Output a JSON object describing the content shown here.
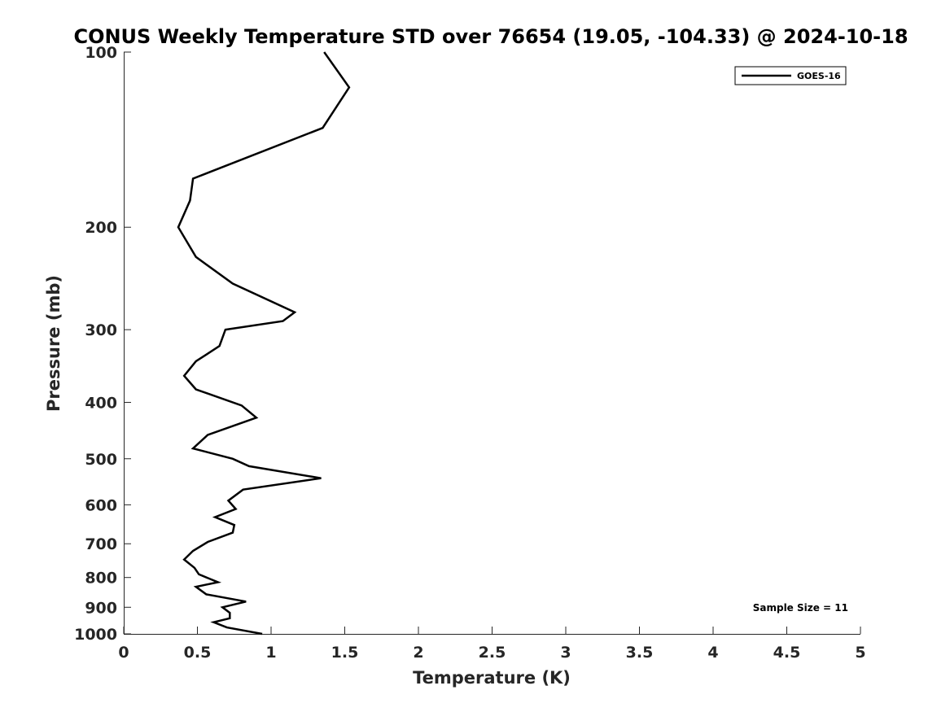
{
  "chart_data": {
    "type": "line",
    "title": "CONUS Weekly Temperature STD over 76654 (19.05, -104.33) @ 2024-10-18",
    "xlabel": "Temperature (K)",
    "ylabel": "Pressure (mb)",
    "xlim": [
      0,
      5
    ],
    "ylim": [
      1000,
      100
    ],
    "yscale": "log",
    "xticks": [
      0,
      0.5,
      1,
      1.5,
      2,
      2.5,
      3,
      3.5,
      4,
      4.5,
      5
    ],
    "xtick_labels": [
      "0",
      "0.5",
      "1",
      "1.5",
      "2",
      "2.5",
      "3",
      "3.5",
      "4",
      "4.5",
      "5"
    ],
    "yticks": [
      100,
      200,
      300,
      400,
      500,
      600,
      700,
      800,
      900,
      1000
    ],
    "ytick_labels": [
      "100",
      "200",
      "300",
      "400",
      "500",
      "600",
      "700",
      "800",
      "900",
      "1000"
    ],
    "grid": false,
    "legend_position": "top-right",
    "series": [
      {
        "name": "GOES-16",
        "color": "#000000",
        "x": [
          1.36,
          1.53,
          1.35,
          0.47,
          0.45,
          0.37,
          0.49,
          0.74,
          1.16,
          1.08,
          0.69,
          0.65,
          0.49,
          0.41,
          0.49,
          0.8,
          0.9,
          0.57,
          0.47,
          0.74,
          0.85,
          1.34,
          0.81,
          0.71,
          0.76,
          0.62,
          0.75,
          0.74,
          0.57,
          0.47,
          0.41,
          0.48,
          0.51,
          0.64,
          0.49,
          0.56,
          0.83,
          0.67,
          0.72,
          0.72,
          0.61,
          0.7,
          0.94
        ],
        "y": [
          100,
          115,
          135,
          165,
          180,
          200,
          225,
          250,
          280,
          290,
          300,
          320,
          340,
          360,
          380,
          405,
          425,
          455,
          480,
          500,
          515,
          540,
          565,
          590,
          610,
          630,
          650,
          670,
          695,
          720,
          745,
          770,
          790,
          815,
          830,
          855,
          880,
          900,
          920,
          940,
          955,
          975,
          1000
        ]
      }
    ],
    "annotations": [
      "Sample Size = 11"
    ]
  }
}
